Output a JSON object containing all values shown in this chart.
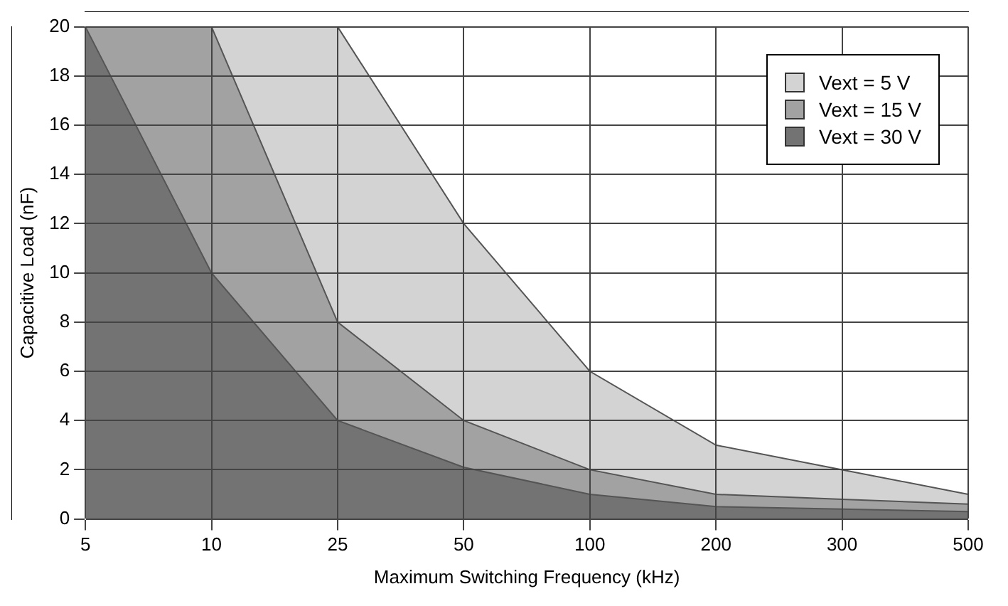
{
  "chart_data": {
    "type": "area",
    "xlabel": "Maximum Switching Frequency (kHz)",
    "ylabel": "Capacitive Load (nF)",
    "categories": [
      "5",
      "10",
      "25",
      "50",
      "100",
      "200",
      "300",
      "500"
    ],
    "series": [
      {
        "name": "Vext = 5 V",
        "color": "#d3d3d3",
        "values": [
          20,
          20,
          20,
          12,
          6,
          3,
          2,
          1
        ]
      },
      {
        "name": "Vext = 15 V",
        "color": "#a2a2a2",
        "values": [
          20,
          20,
          8,
          4,
          2,
          1,
          0.8,
          0.6
        ]
      },
      {
        "name": "Vext = 30 V",
        "color": "#737373",
        "values": [
          20,
          10,
          4,
          2.1,
          1,
          0.5,
          0.4,
          0.3
        ]
      }
    ],
    "ylim": [
      0,
      20
    ],
    "yticks": [
      0,
      2,
      4,
      6,
      8,
      10,
      12,
      14,
      16,
      18,
      20
    ],
    "grid": true,
    "legend": "top right"
  }
}
